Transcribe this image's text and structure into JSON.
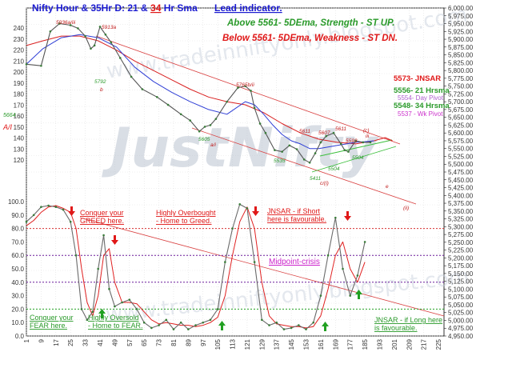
{
  "chart_data": {
    "type": "line",
    "title": "Nifty Hour & 35Hr D: 21 & 34 Hr Sma",
    "title_parts": {
      "prefix": "Nifty Hour & 35Hr D: ",
      "sma_fast": "21",
      "sma_joiner": " & ",
      "sma_slow": "34",
      "suffix": " Hr Sma"
    },
    "subtitle": "Lead indicator.",
    "watermark": "JustNifty",
    "watermark_url": "www.tradeinniftyonly.blogspot.com",
    "colors": {
      "price": "#555555",
      "price_markers": "#3a7d3a",
      "sma21": "#2f3fd6",
      "sma34": "#d92020",
      "trendline": "#d94040",
      "channel_green": "#3bbf3b",
      "osc_line": "#6a6a6a",
      "osc_signal": "#e02020",
      "title": "#1a1ad0",
      "above_text": "#2a9a2a",
      "below_text": "#e01818",
      "pivot_day": "#b060d0",
      "pivot_wk": "#cc33cc",
      "level_red": "#d83030",
      "level_green": "#22a022",
      "level_purple": "#6a1a9a"
    },
    "price_panel": {
      "y_axis": {
        "min": 4950,
        "max": 6000,
        "step": 25,
        "position": "right",
        "ticks": [
          "4,950.00",
          "4,975.00",
          "5,000.00",
          "5,025.00",
          "5,050.00",
          "5,075.00",
          "5,100.00",
          "5,125.00",
          "5,150.00",
          "5,175.00",
          "5,200.00",
          "5,225.00",
          "5,250.00",
          "5,275.00",
          "5,300.00",
          "5,325.00",
          "5,350.00",
          "5,375.00",
          "5,400.00",
          "5,425.00",
          "5,450.00",
          "5,475.00",
          "5,500.00",
          "5,525.00",
          "5,550.00",
          "5,575.00",
          "5,600.00",
          "5,625.00",
          "5,650.00",
          "5,675.00",
          "5,700.00",
          "5,725.00",
          "5,750.00",
          "5,775.00",
          "5,800.00",
          "5,825.00",
          "5,850.00",
          "5,875.00",
          "5,900.00",
          "5,925.00",
          "5,950.00",
          "5,975.00",
          "6,000.00"
        ]
      },
      "left_axis": {
        "min": 120,
        "max": 240,
        "ticks": [
          "120",
          "130",
          "140",
          "150",
          "160",
          "170",
          "180",
          "190",
          "200",
          "210",
          "220",
          "230",
          "240"
        ]
      },
      "x": [
        1,
        9,
        14,
        19,
        25,
        29,
        33,
        36,
        38,
        41,
        44,
        47,
        52,
        58,
        64,
        72,
        78,
        85,
        90,
        95,
        98,
        101,
        104,
        110,
        116,
        120,
        123,
        125,
        128,
        131,
        136,
        140,
        144,
        148,
        152,
        155,
        158,
        161,
        164,
        168,
        172,
        174,
        176,
        180,
        184,
        188
      ],
      "close": [
        5820,
        5815,
        5925,
        5950,
        5945,
        5935,
        5910,
        5870,
        5880,
        5940,
        5915,
        5890,
        5840,
        5780,
        5740,
        5715,
        5690,
        5660,
        5640,
        5605,
        5620,
        5625,
        5645,
        5700,
        5745,
        5750,
        5735,
        5680,
        5630,
        5600,
        5545,
        5540,
        5560,
        5548,
        5515,
        5505,
        5535,
        5570,
        5590,
        5600,
        5565,
        5545,
        5540,
        5575,
        5570,
        5570
      ],
      "sma21_x": [
        1,
        10,
        20,
        30,
        40,
        50,
        60,
        70,
        80,
        90,
        100,
        110,
        120,
        125,
        130,
        135,
        140,
        145,
        150,
        155,
        160,
        165,
        170,
        175,
        180,
        185,
        190
      ],
      "sma21": [
        5820,
        5870,
        5905,
        5915,
        5905,
        5875,
        5810,
        5765,
        5730,
        5700,
        5675,
        5660,
        5700,
        5690,
        5660,
        5625,
        5595,
        5575,
        5565,
        5550,
        5550,
        5555,
        5560,
        5565,
        5570,
        5572,
        5575
      ],
      "sma34_x": [
        1,
        10,
        20,
        30,
        40,
        50,
        60,
        70,
        80,
        90,
        100,
        110,
        120,
        130,
        140,
        150,
        160,
        170,
        180,
        190,
        196,
        200
      ],
      "sma34": [
        5880,
        5895,
        5910,
        5910,
        5895,
        5865,
        5830,
        5800,
        5770,
        5740,
        5715,
        5700,
        5690,
        5665,
        5630,
        5600,
        5580,
        5570,
        5565,
        5575,
        5585,
        5575
      ],
      "annotations": {
        "level_above": "Above 5561-  5DEma,  Strength - ST  UP.",
        "level_below": "Below 5561-  5DEma,  Weakness - ST  DN.",
        "jnsar": "5573- JNSAR",
        "hrsma21": "5556- 21 Hrsma",
        "day_pivot": "5554- Day Pivot",
        "hrsma34": "5548- 34 Hrsma",
        "wk_pivot": "5537 - Wk Pivot",
        "left_val": "5664",
        "left_label": "A/I",
        "wave_labels": [
          "5936a/iii",
          "5913a",
          "5792",
          "b",
          "5605",
          "a/i",
          "5765b/ii",
          "5535",
          "5611",
          "5607",
          "5611",
          "5593",
          "5504",
          "5411",
          "5504",
          "c/(i)",
          "(c)",
          "iii",
          "e",
          "(ii)"
        ]
      }
    },
    "osc_panel": {
      "y_axis": {
        "min": 0,
        "max": 100,
        "ticks": [
          "0.0",
          "10.0",
          "20.0",
          "30.0",
          "40.0",
          "50.0",
          "60.0",
          "70.0",
          "80.0",
          "90.0",
          "100.0"
        ]
      },
      "x": [
        1,
        5,
        9,
        13,
        17,
        21,
        25,
        28,
        31,
        34,
        37,
        40,
        43,
        46,
        49,
        53,
        57,
        61,
        65,
        69,
        73,
        77,
        81,
        85,
        89,
        93,
        97,
        101,
        105,
        109,
        113,
        117,
        121,
        125,
        129,
        133,
        137,
        141,
        145,
        149,
        153,
        157,
        161,
        165,
        169,
        173,
        177,
        181,
        185
      ],
      "osc": [
        85,
        90,
        96,
        97,
        96,
        94,
        85,
        60,
        20,
        12,
        18,
        50,
        75,
        35,
        22,
        25,
        27,
        20,
        10,
        6,
        8,
        12,
        5,
        10,
        5,
        8,
        10,
        12,
        20,
        55,
        80,
        98,
        95,
        55,
        12,
        8,
        10,
        5,
        6,
        8,
        5,
        10,
        30,
        60,
        88,
        50,
        30,
        45,
        70
      ],
      "signal": [
        82,
        86,
        92,
        96,
        97,
        95,
        92,
        80,
        50,
        25,
        15,
        30,
        60,
        65,
        40,
        25,
        25,
        24,
        18,
        12,
        9,
        10,
        9,
        8,
        8,
        7,
        8,
        10,
        14,
        30,
        60,
        85,
        96,
        80,
        40,
        15,
        9,
        8,
        7,
        7,
        6,
        7,
        15,
        35,
        60,
        70,
        50,
        40,
        55
      ],
      "levels": [
        {
          "value": 80,
          "color": "#d83030"
        },
        {
          "value": 60,
          "color": "#6a1a9a"
        },
        {
          "value": 40,
          "color": "#6a1a9a"
        },
        {
          "value": 20,
          "color": "#22a022"
        }
      ],
      "annotations": {
        "greed": "Conquer your\nGREED here.",
        "overbought": "Highly Overbought\n- Home to Greed.",
        "jnsar_short": "JNSAR - if Short\nhere is favourable.",
        "midpoint": "Midpoint-crisis",
        "fear": "Conquer your\nFEAR here.",
        "oversold": "Highly Oversold\n- Home to FEAR.",
        "jnsar_long": "JNSAR - if Long here\nis favourable."
      }
    },
    "x_axis": {
      "ticks": [
        "1",
        "9",
        "17",
        "25",
        "33",
        "41",
        "49",
        "57",
        "65",
        "73",
        "81",
        "89",
        "97",
        "105",
        "113",
        "121",
        "129",
        "137",
        "145",
        "153",
        "161",
        "169",
        "177",
        "185",
        "193",
        "201",
        "209",
        "217",
        "225"
      ],
      "min": 1,
      "max": 228
    },
    "grid": true,
    "legend": "none"
  }
}
